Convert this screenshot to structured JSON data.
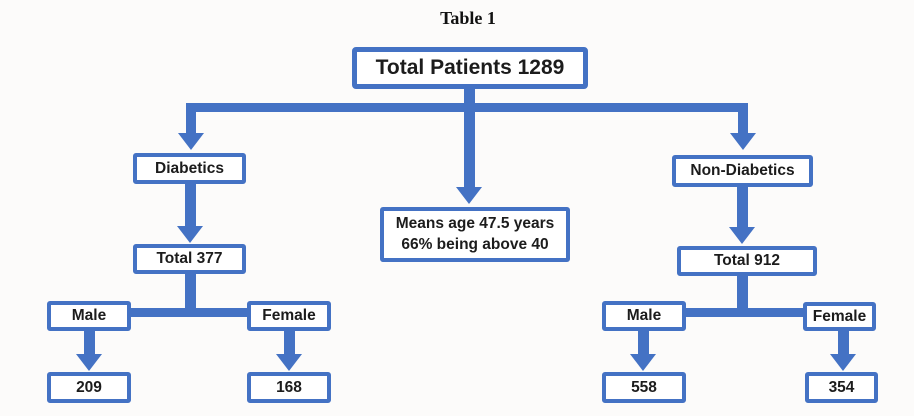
{
  "title": "Table 1",
  "colors": {
    "accent": "#4472C4",
    "box_bg": "#FFFFFF",
    "text": "#1C1C1C"
  },
  "flowchart": {
    "root": {
      "label": "Total Patients 1289"
    },
    "note": {
      "line1": "Means age 47.5 years",
      "line2": "66% being above 40"
    },
    "diabetics": {
      "group_label": "Diabetics",
      "total_label": "Total 377",
      "male_label": "Male",
      "male_count": "209",
      "female_label": "Female",
      "female_count": "168"
    },
    "non_diabetics": {
      "group_label": "Non-Diabetics",
      "total_label": "Total 912",
      "male_label": "Male",
      "male_count": "558",
      "female_label": "Female",
      "female_count": "354"
    }
  }
}
